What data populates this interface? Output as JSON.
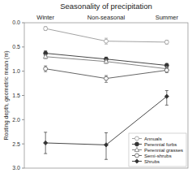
{
  "chart_data": {
    "type": "line",
    "title": "Seasonality of precipitation",
    "categories": [
      "Winter",
      "Non-seasonal",
      "Summer"
    ],
    "ylabel": "Rooting depth, geometric mean (m)",
    "ylim": [
      3.0,
      0.0
    ],
    "yticks": [
      {
        "value": 0.0,
        "label": "0.0"
      },
      0.5,
      {
        "value": 1.0,
        "label": "1.0"
      },
      1.5,
      {
        "value": 2.0,
        "label": "2.0"
      },
      2.5,
      {
        "value": 3.0,
        "label": "3.0"
      }
    ],
    "grid": false,
    "legend": "lower right",
    "series": [
      {
        "name": "Annuals",
        "color": "#999999",
        "marker": "open-circle",
        "values": [
          0.12,
          0.38,
          0.4
        ],
        "error_low": [
          0.04,
          0.06,
          0.04
        ],
        "error_high": [
          0.04,
          0.06,
          0.04
        ]
      },
      {
        "name": "Perennial forbs",
        "color": "#333333",
        "marker": "circle",
        "values": [
          0.63,
          0.75,
          0.88
        ],
        "error_low": [
          0.05,
          0.04,
          0.04
        ],
        "error_high": [
          0.05,
          0.06,
          0.04
        ]
      },
      {
        "name": "Perennial grasses",
        "color": "#777777",
        "marker": "open-triangle",
        "values": [
          0.7,
          0.8,
          0.95
        ],
        "error_low": [
          0.04,
          0.04,
          0.04
        ],
        "error_high": [
          0.04,
          0.04,
          0.04
        ]
      },
      {
        "name": "Semi-shrubs",
        "color": "#555555",
        "marker": "open-circle",
        "values": [
          0.95,
          1.15,
          0.98
        ],
        "error_low": [
          0.06,
          0.06,
          0.05
        ],
        "error_high": [
          0.06,
          0.08,
          0.05
        ]
      },
      {
        "name": "Shrubs",
        "color": "#333333",
        "marker": "diamond",
        "values": [
          2.48,
          2.52,
          1.52
        ],
        "error_low": [
          0.22,
          0.25,
          0.12
        ],
        "error_high": [
          0.22,
          0.3,
          0.18
        ]
      }
    ]
  }
}
